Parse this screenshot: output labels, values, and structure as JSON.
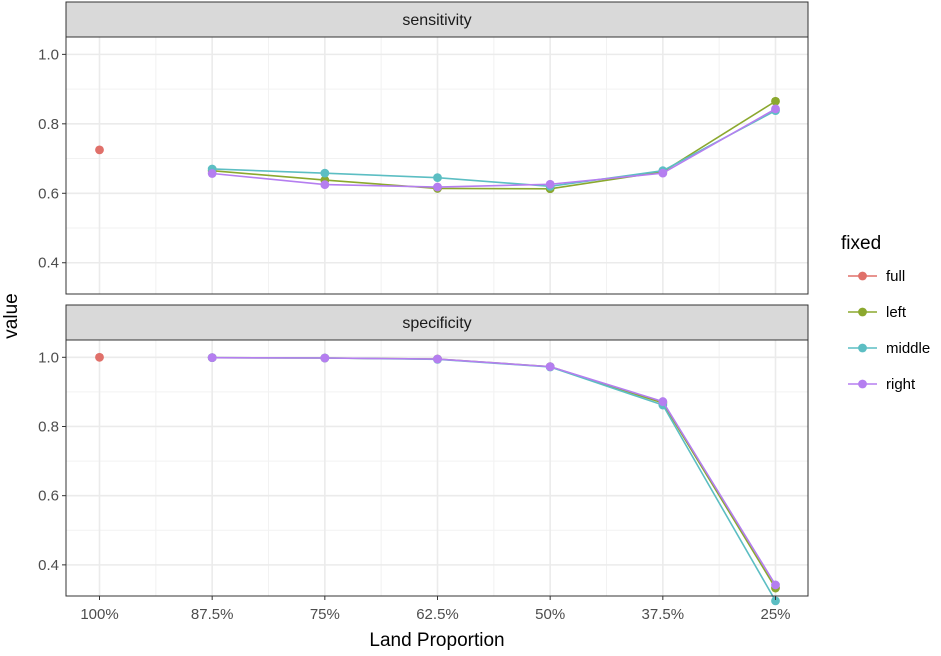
{
  "chart_data": {
    "type": "line",
    "x_axis": {
      "title": "Land Proportion",
      "categories": [
        "100%",
        "87.5%",
        "75%",
        "62.5%",
        "50%",
        "37.5%",
        "25%"
      ]
    },
    "y_axis": {
      "title": "value",
      "ylim": [
        0.31,
        1.05
      ],
      "ticks": [
        0.4,
        0.6,
        0.8,
        1.0
      ],
      "tick_labels": [
        "0.4",
        "0.6",
        "0.8",
        "1.0"
      ]
    },
    "grid": true,
    "legend": {
      "title": "fixed",
      "placement": "right"
    },
    "series": [
      {
        "name": "full",
        "color": "#E0706A"
      },
      {
        "name": "left",
        "color": "#8BA82E"
      },
      {
        "name": "middle",
        "color": "#5CBEC3"
      },
      {
        "name": "right",
        "color": "#B57EF0"
      }
    ],
    "panels": [
      {
        "strip": "sensitivity",
        "data": {
          "full": [
            0.725,
            null,
            null,
            null,
            null,
            null,
            null
          ],
          "left": [
            null,
            0.665,
            0.638,
            0.614,
            0.613,
            0.662,
            0.865
          ],
          "middle": [
            null,
            0.67,
            0.658,
            0.645,
            0.62,
            0.665,
            0.838
          ],
          "right": [
            null,
            0.657,
            0.625,
            0.618,
            0.626,
            0.658,
            0.843
          ]
        }
      },
      {
        "strip": "specificity",
        "data": {
          "full": [
            1.0,
            null,
            null,
            null,
            null,
            null,
            null
          ],
          "left": [
            null,
            0.999,
            0.998,
            0.995,
            0.973,
            0.868,
            0.333
          ],
          "middle": [
            null,
            0.999,
            0.998,
            0.994,
            0.972,
            0.862,
            0.296
          ],
          "right": [
            null,
            0.999,
            0.998,
            0.995,
            0.973,
            0.872,
            0.342
          ]
        }
      }
    ]
  }
}
